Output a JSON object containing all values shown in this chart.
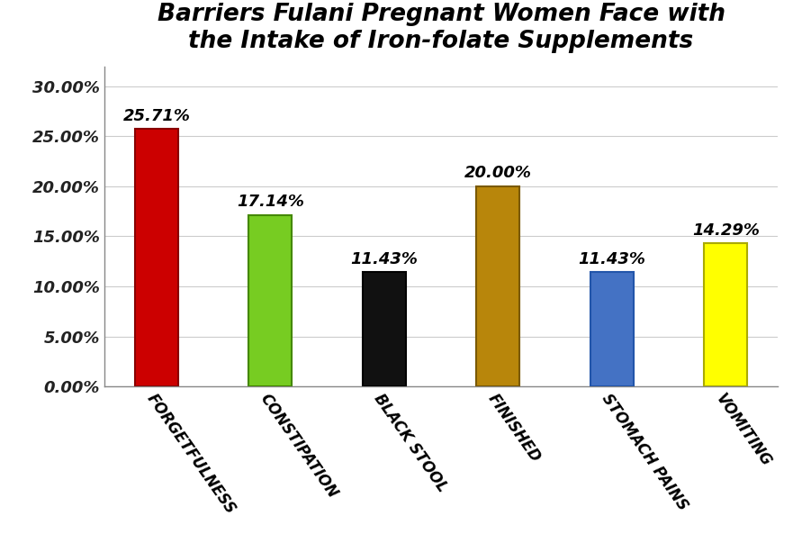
{
  "title_line1": "Barriers Fulani Pregnant Women Face with",
  "title_line2": "the Intake of Iron-folate Supplements",
  "categories": [
    "FORGETFULNESS",
    "CONSTIPATION",
    "BLACK STOOL",
    "FINISHED",
    "STOMACH PAINS",
    "VOMITING"
  ],
  "values": [
    25.71,
    17.14,
    11.43,
    20.0,
    11.43,
    14.29
  ],
  "bar_colors": [
    "#cc0000",
    "#77cc22",
    "#111111",
    "#b8860b",
    "#4472c4",
    "#ffff00"
  ],
  "bar_edge_colors": [
    "#880000",
    "#448800",
    "#000000",
    "#7a5900",
    "#2255aa",
    "#aaaa00"
  ],
  "annotations": [
    "25.71%",
    "17.14%",
    "11.43%",
    "20.00%",
    "11.43%",
    "14.29%"
  ],
  "ylim": [
    0,
    32
  ],
  "ytick_labels": [
    "0.00%",
    "5.00%",
    "10.00%",
    "15.00%",
    "20.00%",
    "25.00%",
    "30.00%"
  ],
  "ytick_values": [
    0,
    5,
    10,
    15,
    20,
    25,
    30
  ],
  "background_color": "#ffffff",
  "title_fontsize": 19,
  "annotation_fontsize": 13,
  "bar_width": 0.38,
  "label_rotation": -55,
  "grid_color": "#cccccc",
  "grid_linewidth": 0.8
}
